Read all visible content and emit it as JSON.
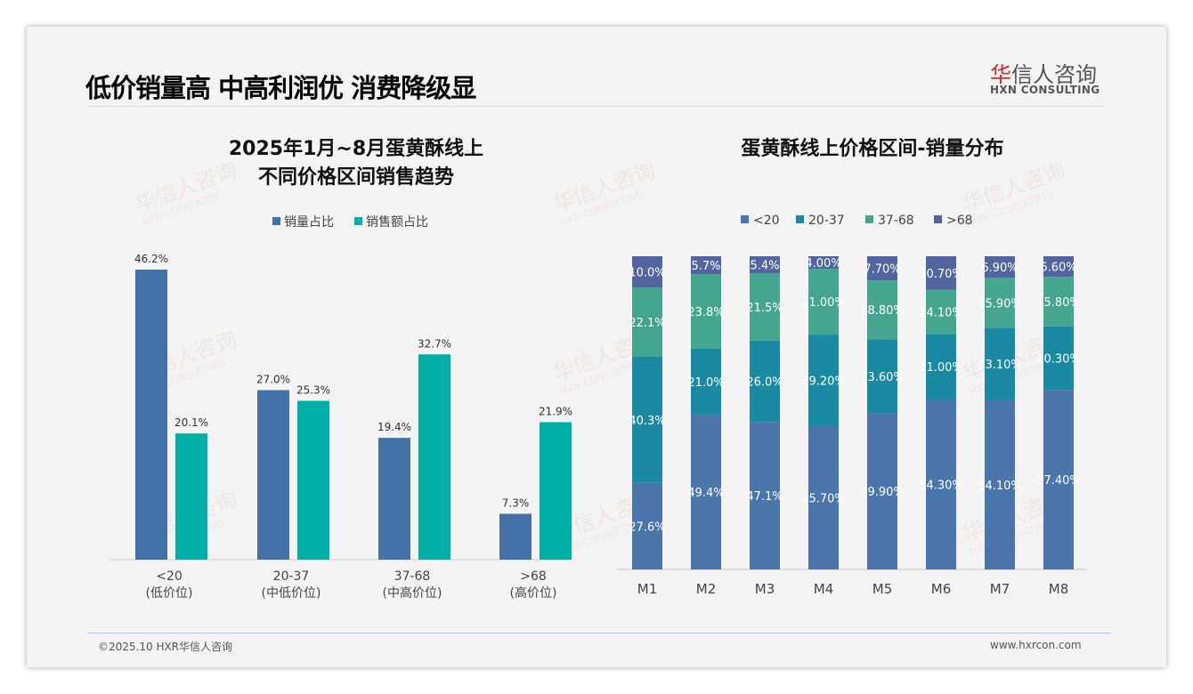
{
  "header": {
    "title": "低价销量高 中高利润优 消费降级显",
    "logo_cn_red": "华",
    "logo_cn_rest": "信人咨询",
    "logo_en": "HXN CONSULTING"
  },
  "watermark": {
    "cn": "华信人咨询",
    "en": "HXN CONSULTING"
  },
  "footer": {
    "left": "©2025.10 HXR华信人咨询",
    "right": "www.hxrcon.com"
  },
  "colors": {
    "sales_volume": "#4472a8",
    "sales_amount": "#00b0a8",
    "lt20": "#4a76ab",
    "r20_37": "#1a8aa2",
    "r37_68": "#45a690",
    "gt68": "#5365a1"
  },
  "chart_data": [
    {
      "type": "bar",
      "title_line1": "2025年1月~8月蛋黄酥线上",
      "title_line2": "不同价格区间销售趋势",
      "categories": [
        "<20",
        "20-37",
        "37-68",
        ">68"
      ],
      "category_sublabels": [
        "(低价位)",
        "(中低价位)",
        "(中高价位)",
        "(高价位)"
      ],
      "legend_position": "top",
      "series": [
        {
          "name": "销量占比",
          "values": [
            46.2,
            27.0,
            19.4,
            7.3
          ],
          "labels": [
            "46.2%",
            "27.0%",
            "19.4%",
            "7.3%"
          ]
        },
        {
          "name": "销售额占比",
          "values": [
            20.1,
            25.3,
            32.7,
            21.9
          ],
          "labels": [
            "20.1%",
            "25.3%",
            "32.7%",
            "21.9%"
          ]
        }
      ],
      "ylim": [
        0,
        50
      ]
    },
    {
      "type": "bar",
      "stacked": true,
      "title": "蛋黄酥线上价格区间-销量分布",
      "categories": [
        "M1",
        "M2",
        "M3",
        "M4",
        "M5",
        "M6",
        "M7",
        "M8"
      ],
      "legend_position": "top",
      "series": [
        {
          "name": "<20",
          "values": [
            27.6,
            49.4,
            47.1,
            45.7,
            49.9,
            54.3,
            54.1,
            57.4
          ],
          "labels": [
            "27.6%",
            "49.4%",
            "47.1%",
            "45.70%",
            "49.90%",
            "54.30%",
            "54.10%",
            "57.40%"
          ]
        },
        {
          "name": "20-37",
          "values": [
            40.3,
            21.0,
            26.0,
            29.2,
            23.6,
            21.0,
            23.1,
            20.3
          ],
          "labels": [
            "40.3%",
            "21.0%",
            "26.0%",
            "29.20%",
            "23.60%",
            "21.00%",
            "23.10%",
            "20.30%"
          ]
        },
        {
          "name": "37-68",
          "values": [
            22.1,
            23.8,
            21.5,
            21.0,
            18.8,
            14.1,
            15.9,
            15.8
          ],
          "labels": [
            "22.1%",
            "23.8%",
            "21.5%",
            "21.00%",
            "18.80%",
            "14.10%",
            "15.90%",
            "15.80%"
          ]
        },
        {
          "name": ">68",
          "values": [
            10.0,
            5.7,
            5.4,
            4.0,
            7.7,
            10.7,
            6.9,
            6.6
          ],
          "labels": [
            "10.0%",
            "5.7%",
            "5.4%",
            "4.00%",
            "7.70%",
            "10.70%",
            "6.90%",
            "6.60%"
          ]
        }
      ],
      "ylim": [
        0,
        100
      ]
    }
  ]
}
